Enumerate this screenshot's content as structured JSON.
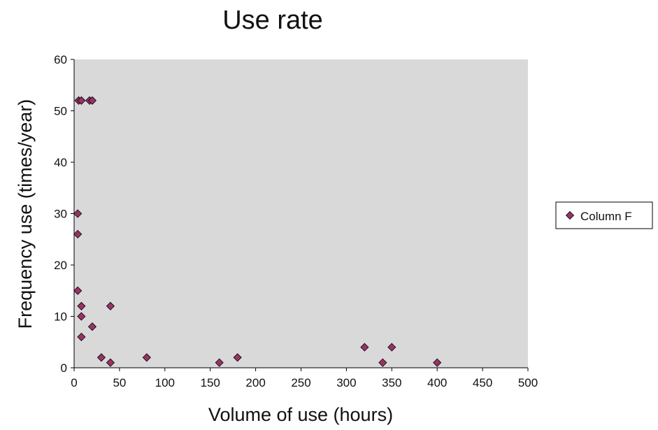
{
  "chart_data": {
    "type": "scatter",
    "title": "Use rate",
    "xlabel": "Volume of use  (hours)",
    "ylabel": "Frequency use  (times/year)",
    "xlim": [
      0,
      500
    ],
    "ylim": [
      0,
      60
    ],
    "xticks": [
      0,
      50,
      100,
      150,
      200,
      250,
      300,
      350,
      400,
      450,
      500
    ],
    "yticks": [
      0,
      10,
      20,
      30,
      40,
      50,
      60
    ],
    "grid": false,
    "plot_background": "#d9d9d9",
    "legend_position": "right",
    "series": [
      {
        "name": "Column F",
        "color": "#993366",
        "marker": "diamond",
        "points": [
          {
            "x": 5,
            "y": 52
          },
          {
            "x": 8,
            "y": 52
          },
          {
            "x": 17,
            "y": 52
          },
          {
            "x": 20,
            "y": 52
          },
          {
            "x": 4,
            "y": 30
          },
          {
            "x": 4,
            "y": 26
          },
          {
            "x": 4,
            "y": 15
          },
          {
            "x": 8,
            "y": 12
          },
          {
            "x": 8,
            "y": 10
          },
          {
            "x": 8,
            "y": 6
          },
          {
            "x": 20,
            "y": 8
          },
          {
            "x": 30,
            "y": 2
          },
          {
            "x": 40,
            "y": 12
          },
          {
            "x": 40,
            "y": 1
          },
          {
            "x": 80,
            "y": 2
          },
          {
            "x": 160,
            "y": 1
          },
          {
            "x": 180,
            "y": 2
          },
          {
            "x": 320,
            "y": 4
          },
          {
            "x": 340,
            "y": 1
          },
          {
            "x": 350,
            "y": 4
          },
          {
            "x": 400,
            "y": 1
          }
        ]
      }
    ]
  }
}
